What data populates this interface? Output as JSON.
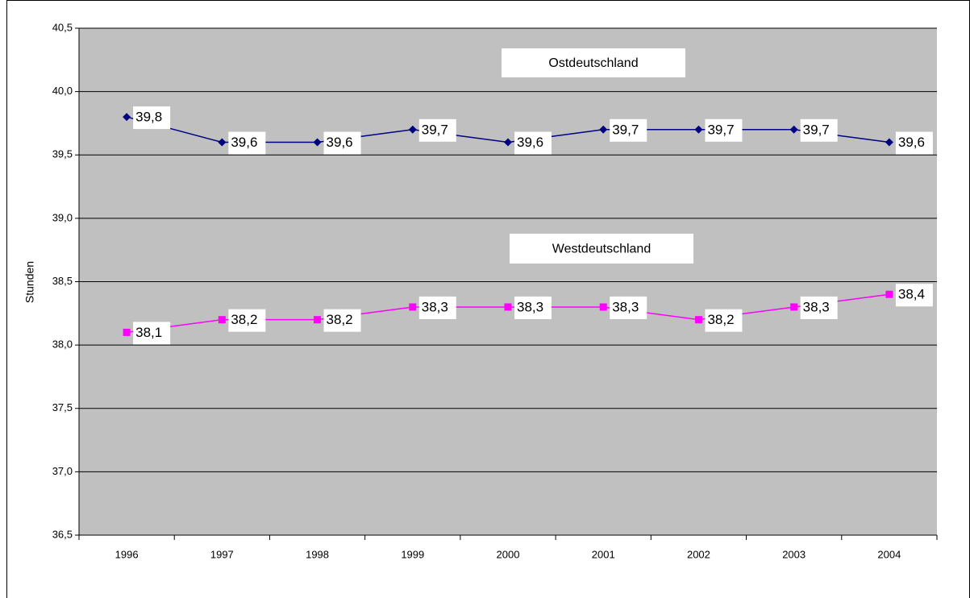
{
  "chart_data": {
    "type": "line",
    "y_label": "Stunden",
    "categories": [
      "1996",
      "1997",
      "1998",
      "1999",
      "2000",
      "2001",
      "2002",
      "2003",
      "2004"
    ],
    "series": [
      {
        "name": "Ostdeutschland",
        "color": "#000080",
        "marker": "diamond",
        "values": [
          39.8,
          39.6,
          39.6,
          39.7,
          39.6,
          39.7,
          39.7,
          39.7,
          39.6
        ],
        "value_labels": [
          "39,8",
          "39,6",
          "39,6",
          "39,7",
          "39,6",
          "39,7",
          "39,7",
          "39,7",
          "39,6"
        ]
      },
      {
        "name": "Westdeutschland",
        "color": "#ff00ff",
        "marker": "square",
        "values": [
          38.1,
          38.2,
          38.2,
          38.3,
          38.3,
          38.3,
          38.2,
          38.3,
          38.4
        ],
        "value_labels": [
          "38,1",
          "38,2",
          "38,2",
          "38,3",
          "38,3",
          "38,3",
          "38,2",
          "38,3",
          "38,4"
        ]
      }
    ],
    "ylim": [
      36.5,
      40.5
    ],
    "yticks": [
      {
        "value": 36.5,
        "label": "36,5"
      },
      {
        "value": 37.0,
        "label": "37,0"
      },
      {
        "value": 37.5,
        "label": "37,5"
      },
      {
        "value": 38.0,
        "label": "38,0"
      },
      {
        "value": 38.5,
        "label": "38,5"
      },
      {
        "value": 39.0,
        "label": "39,0"
      },
      {
        "value": 39.5,
        "label": "39,5"
      },
      {
        "value": 40.0,
        "label": "40,0"
      },
      {
        "value": 40.5,
        "label": "40,5"
      }
    ],
    "grid": true,
    "plot_background": "#c0c0c0"
  }
}
